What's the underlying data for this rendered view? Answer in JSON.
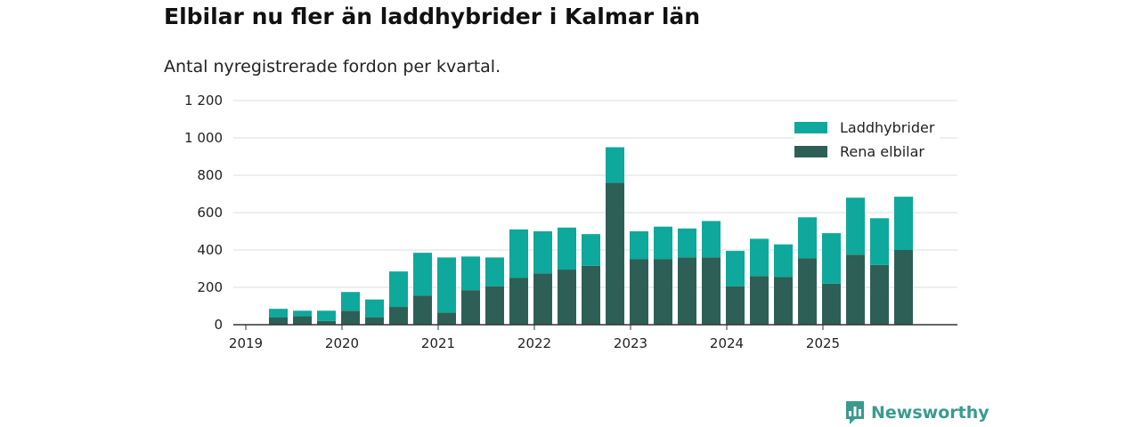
{
  "title": "Elbilar nu fler än laddhybrider i Kalmar län",
  "subtitle": "Antal nyregistrerade fordon per kvartal.",
  "brand": {
    "name": "Newsworthy"
  },
  "colors": {
    "laddhybrider": "#0fa89c",
    "rena_elbilar": "#2e5f57",
    "grid": "#dddddd",
    "axis": "#333333",
    "brand": "#3a9a90"
  },
  "chart_data": {
    "type": "bar",
    "stacked": true,
    "categories": [
      "2019 Q2",
      "2019 Q3",
      "2019 Q4",
      "2020 Q1",
      "2020 Q2",
      "2020 Q3",
      "2020 Q4",
      "2021 Q1",
      "2021 Q2",
      "2021 Q3",
      "2021 Q4",
      "2022 Q1",
      "2022 Q2",
      "2022 Q3",
      "2022 Q4",
      "2023 Q1",
      "2023 Q2",
      "2023 Q3",
      "2023 Q4",
      "2024 Q1",
      "2024 Q2",
      "2024 Q3",
      "2024 Q4",
      "2025 Q1",
      "2025 Q2",
      "2025 Q3",
      "2025 Q4"
    ],
    "series": [
      {
        "name": "Rena elbilar",
        "values": [
          40,
          45,
          20,
          75,
          40,
          95,
          155,
          65,
          185,
          205,
          250,
          275,
          295,
          315,
          760,
          350,
          350,
          360,
          360,
          205,
          260,
          255,
          355,
          220,
          375,
          320,
          400
        ]
      },
      {
        "name": "Laddhybrider",
        "values": [
          45,
          30,
          55,
          100,
          95,
          190,
          230,
          295,
          180,
          155,
          260,
          225,
          225,
          170,
          190,
          150,
          175,
          155,
          195,
          190,
          200,
          175,
          220,
          270,
          305,
          250,
          285
        ]
      }
    ],
    "legend": [
      "Laddhybrider",
      "Rena elbilar"
    ],
    "legend_position": "top-right",
    "xticks": [
      "2019",
      "2020",
      "2021",
      "2022",
      "2023",
      "2024",
      "2025"
    ],
    "yticks": [
      "0",
      "200",
      "400",
      "600",
      "800",
      "1 000",
      "1 200"
    ],
    "ytick_values": [
      0,
      200,
      400,
      600,
      800,
      1000,
      1200
    ],
    "ylim": [
      0,
      1200
    ],
    "title": "Elbilar nu fler än laddhybrider i Kalmar län",
    "subtitle": "Antal nyregistrerade fordon per kvartal.",
    "xlabel": "",
    "ylabel": "",
    "grid": true
  }
}
